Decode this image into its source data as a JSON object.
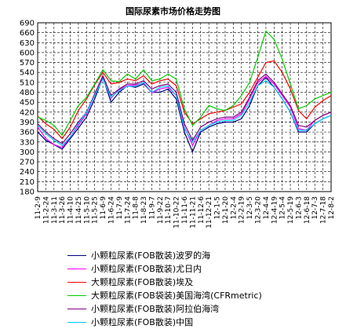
{
  "chart_data": {
    "type": "line",
    "title": "国际尿素市场价格走势图",
    "ylim": [
      180,
      690
    ],
    "yticks": [
      180,
      210,
      240,
      270,
      300,
      330,
      360,
      390,
      420,
      450,
      480,
      510,
      540,
      570,
      600,
      630,
      660,
      690
    ],
    "x": [
      "11-2-9",
      "11-2-24",
      "11-3-11",
      "11-3-26",
      "11-4-10",
      "11-4-25",
      "11-5-10",
      "11-5-25",
      "11-6-9",
      "11-6-24",
      "11-7-9",
      "11-7-24",
      "11-8-8",
      "11-8-23",
      "11-9-7",
      "11-9-22",
      "11-10-7",
      "11-10-22",
      "11-11-6",
      "11-11-21",
      "11-12-6",
      "11-12-21",
      "12-1-5",
      "12-1-20",
      "12-2-4",
      "12-2-19",
      "12-3-5",
      "12-3-20",
      "12-4-4",
      "12-4-19",
      "12-5-4",
      "12-5-19",
      "12-6-3",
      "12-6-18",
      "12-7-3",
      "12-7-18",
      "12-8-2"
    ],
    "grid": true,
    "legend_position": "bottom",
    "series": [
      {
        "name": "小颗粒尿素(FOB散装)波罗的海",
        "color": "#000080",
        "values": [
          360,
          335,
          322,
          308,
          340,
          372,
          405,
          460,
          525,
          450,
          480,
          500,
          495,
          505,
          480,
          480,
          490,
          460,
          360,
          300,
          360,
          375,
          385,
          390,
          390,
          400,
          440,
          500,
          525,
          495,
          460,
          420,
          360,
          360,
          385,
          400,
          410
        ]
      },
      {
        "name": "小颗粒尿素(FOB散装)尤日内",
        "color": "#ff00ff",
        "values": [
          375,
          340,
          322,
          313,
          345,
          380,
          415,
          470,
          530,
          462,
          488,
          500,
          502,
          508,
          478,
          490,
          495,
          470,
          375,
          320,
          365,
          380,
          395,
          400,
          400,
          415,
          460,
          510,
          528,
          505,
          470,
          435,
          370,
          365,
          395,
          410,
          420
        ]
      },
      {
        "name": "大颗粒尿素(FOB散装)埃及",
        "color": "#ff0000",
        "values": [
          408,
          385,
          368,
          340,
          375,
          425,
          460,
          503,
          540,
          505,
          510,
          520,
          515,
          530,
          505,
          515,
          520,
          500,
          420,
          385,
          400,
          415,
          420,
          425,
          435,
          445,
          480,
          525,
          570,
          575,
          540,
          490,
          425,
          400,
          435,
          455,
          470
        ]
      },
      {
        "name": "大颗粒尿素(FOB袋装)美国海湾(CFRmetric)",
        "color": "#00cc00",
        "values": [
          405,
          395,
          380,
          350,
          395,
          440,
          465,
          505,
          548,
          515,
          512,
          535,
          520,
          548,
          515,
          520,
          535,
          520,
          430,
          380,
          405,
          440,
          430,
          425,
          440,
          470,
          510,
          585,
          665,
          640,
          580,
          505,
          430,
          440,
          460,
          470,
          480
        ]
      },
      {
        "name": "小颗粒尿素(FOB散装)阿拉伯海湾",
        "color": "#800080",
        "values": [
          385,
          360,
          340,
          325,
          355,
          390,
          420,
          475,
          530,
          470,
          490,
          505,
          505,
          515,
          490,
          500,
          505,
          480,
          385,
          335,
          375,
          390,
          400,
          405,
          405,
          420,
          465,
          515,
          535,
          510,
          475,
          440,
          380,
          375,
          395,
          410,
          420
        ]
      },
      {
        "name": "小颗粒尿素(FOB散装)中国",
        "color": "#00ccff",
        "values": [
          380,
          355,
          335,
          320,
          345,
          385,
          420,
          470,
          520,
          465,
          485,
          498,
          498,
          510,
          480,
          495,
          500,
          470,
          370,
          330,
          365,
          380,
          390,
          395,
          395,
          410,
          450,
          500,
          515,
          495,
          460,
          420,
          365,
          365,
          385,
          400,
          410
        ]
      }
    ]
  }
}
